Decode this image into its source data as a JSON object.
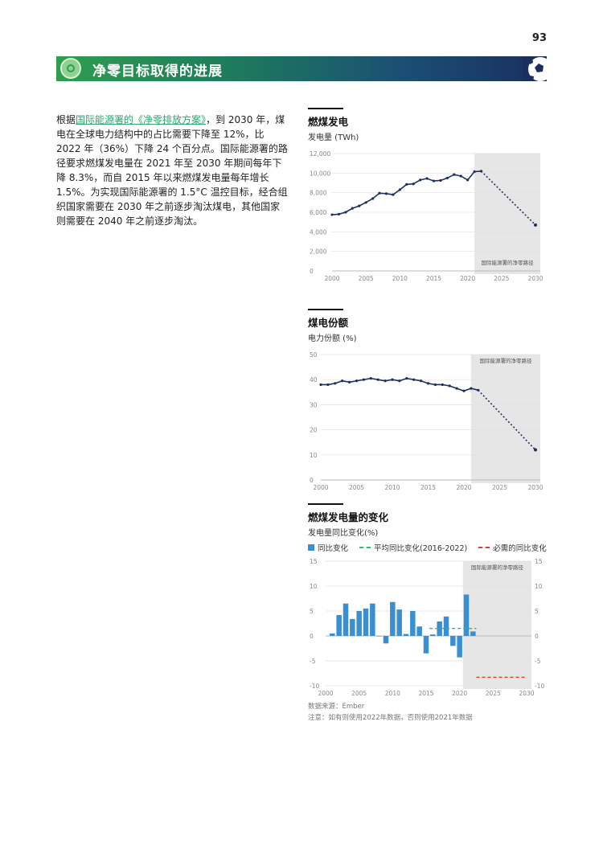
{
  "page_number": "93",
  "header": {
    "title": "净零目标取得的进展"
  },
  "body": {
    "part1": "根据",
    "link": "国际能源署的《净零排放方案》",
    "part2": "，到 2030 年，煤电在全球电力结构中的占比需要下降至 12%，比 2022 年（36%）下降 24 个百分点。国际能源署的路径要求燃煤发电量在 2021 年至 2030 年期间每年下降 8.3%，而自 2015 年以来燃煤发电量每年增长 1.5%。为实现国际能源署的 1.5°C 温控目标，经合组织国家需要在 2030 年之前逐步淘汰煤电，其他国家则需要在 2040 年之前逐步淘汰。"
  },
  "colors": {
    "line": "#1f2f5f",
    "bar": "#3a8fd0",
    "avg": "#3fb574",
    "required": "#d9412b",
    "shade": "#e6e6e6"
  },
  "chart_data": [
    {
      "type": "line",
      "title": "燃煤发电",
      "ylabel": "发电量 (TWh)",
      "shade_label": "国际能源署的净零路径",
      "x": [
        2000,
        2001,
        2002,
        2003,
        2004,
        2005,
        2006,
        2007,
        2008,
        2009,
        2010,
        2011,
        2012,
        2013,
        2014,
        2015,
        2016,
        2017,
        2018,
        2019,
        2020,
        2021,
        2022
      ],
      "values": [
        5750,
        5800,
        6000,
        6400,
        6650,
        7000,
        7400,
        7950,
        7900,
        7800,
        8300,
        8850,
        8900,
        9300,
        9450,
        9200,
        9250,
        9500,
        9850,
        9700,
        9300,
        10150,
        10200
      ],
      "projection": {
        "x": [
          2022,
          2030
        ],
        "values": [
          10200,
          4700
        ]
      },
      "xlim": [
        2000,
        2030
      ],
      "ylim": [
        0,
        12000
      ],
      "yticks": [
        "0",
        "2,000",
        "4,000",
        "6,000",
        "8,000",
        "10,000",
        "12,000"
      ],
      "xticks": [
        "2000",
        "2005",
        "2010",
        "2015",
        "2020",
        "2025",
        "2030"
      ]
    },
    {
      "type": "line",
      "title": "煤电份额",
      "ylabel": "电力份额 (%)",
      "shade_label": "国际能源署的净零路径",
      "x": [
        2000,
        2001,
        2002,
        2003,
        2004,
        2005,
        2006,
        2007,
        2008,
        2009,
        2010,
        2011,
        2012,
        2013,
        2014,
        2015,
        2016,
        2017,
        2018,
        2019,
        2020,
        2021,
        2022
      ],
      "values": [
        38,
        38,
        38.5,
        39.5,
        39,
        39.5,
        40,
        40.5,
        40,
        39.5,
        40,
        39.5,
        40.5,
        40,
        39.5,
        38.5,
        38,
        38,
        37.5,
        36.5,
        35.5,
        36.5,
        35.8
      ],
      "projection": {
        "x": [
          2022,
          2030
        ],
        "values": [
          35.8,
          12
        ]
      },
      "xlim": [
        2000,
        2030
      ],
      "ylim": [
        0,
        50
      ],
      "yticks": [
        "0",
        "10",
        "20",
        "30",
        "40",
        "50"
      ],
      "xticks": [
        "2000",
        "2005",
        "2010",
        "2015",
        "2020",
        "2025",
        "2030"
      ]
    },
    {
      "type": "bar",
      "title": "燃煤发电量的变化",
      "ylabel": "发电量同比变化(%)",
      "shade_label": "国际能源署的净零路径",
      "legend": [
        "同比变化",
        "平均同比变化(2016-2022)",
        "必需的同比变化"
      ],
      "x": [
        2001,
        2002,
        2003,
        2004,
        2005,
        2006,
        2007,
        2008,
        2009,
        2010,
        2011,
        2012,
        2013,
        2014,
        2015,
        2016,
        2017,
        2018,
        2019,
        2020,
        2021,
        2022
      ],
      "values": [
        0.5,
        4.2,
        6.5,
        3.4,
        5.0,
        5.5,
        6.5,
        0.0,
        -1.5,
        6.8,
        5.3,
        0.4,
        5.0,
        1.9,
        -3.5,
        0.3,
        2.9,
        3.9,
        -2.0,
        -4.3,
        8.3,
        0.9
      ],
      "average": {
        "x": [
          2016,
          2022
        ],
        "value": 1.5
      },
      "required": {
        "x": [
          2022,
          2030
        ],
        "value": -8.3
      },
      "xlim": [
        2000,
        2030
      ],
      "ylim": [
        -10,
        15
      ],
      "yticks": [
        "-10",
        "-5",
        "0",
        "5",
        "10",
        "15"
      ],
      "xticks": [
        "2000",
        "2005",
        "2010",
        "2015",
        "2020",
        "2025",
        "2030"
      ]
    }
  ],
  "source": {
    "line1": "数据来源：Ember",
    "line2": "注意：如有则使用2022年数据，否则使用2021年数据"
  }
}
